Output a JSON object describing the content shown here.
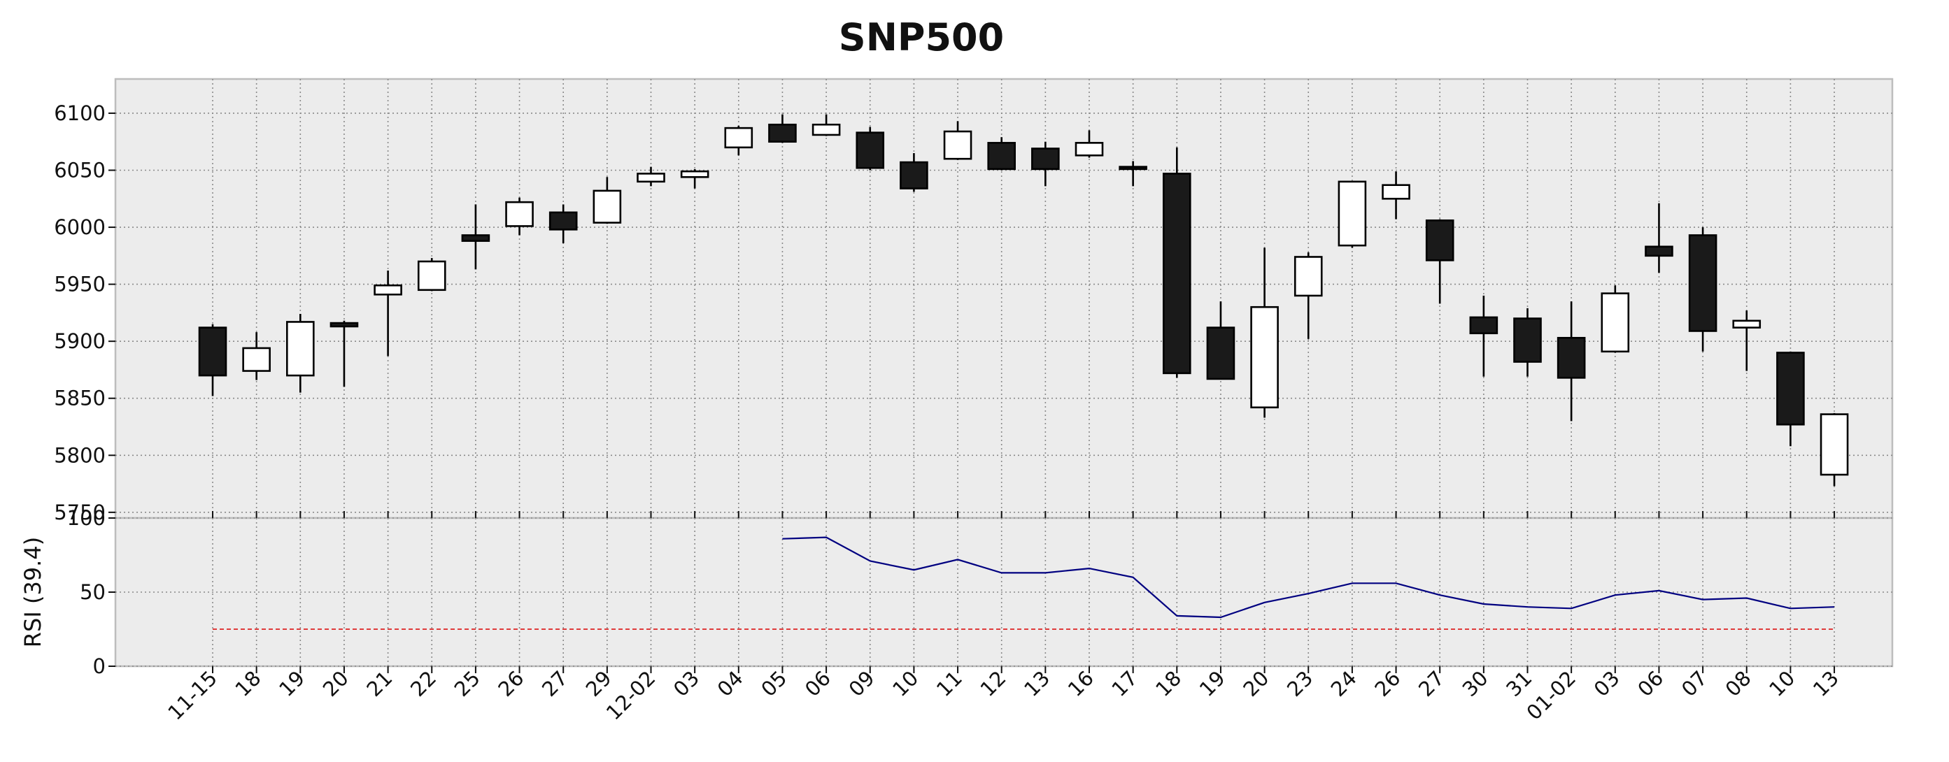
{
  "chart_data": [
    {
      "type": "candlestick",
      "title": "SNP500",
      "ylabel": "",
      "ylim": [
        5745,
        6130
      ],
      "yticks": [
        5750,
        5800,
        5850,
        5900,
        5950,
        6000,
        6050,
        6100
      ],
      "grid": true,
      "up_color": "#ffffff",
      "down_color": "#1a1a1a",
      "categories": [
        "11-15",
        "18",
        "19",
        "20",
        "21",
        "22",
        "25",
        "26",
        "27",
        "29",
        "12-02",
        "03",
        "04",
        "05",
        "06",
        "09",
        "10",
        "11",
        "12",
        "13",
        "16",
        "17",
        "18",
        "19",
        "20",
        "23",
        "24",
        "26",
        "27",
        "30",
        "31",
        "01-02",
        "03",
        "06",
        "07",
        "08",
        "10",
        "13"
      ],
      "ohlc": [
        {
          "open": 5912,
          "high": 5915,
          "low": 5852,
          "close": 5870
        },
        {
          "open": 5874,
          "high": 5908,
          "low": 5866,
          "close": 5894
        },
        {
          "open": 5870,
          "high": 5924,
          "low": 5855,
          "close": 5917
        },
        {
          "open": 5916,
          "high": 5918,
          "low": 5860,
          "close": 5913
        },
        {
          "open": 5941,
          "high": 5962,
          "low": 5887,
          "close": 5949
        },
        {
          "open": 5945,
          "high": 5973,
          "low": 5944,
          "close": 5970
        },
        {
          "open": 5993,
          "high": 6020,
          "low": 5963,
          "close": 5988
        },
        {
          "open": 6001,
          "high": 6026,
          "low": 5993,
          "close": 6022
        },
        {
          "open": 6013,
          "high": 6020,
          "low": 5986,
          "close": 5998
        },
        {
          "open": 6004,
          "high": 6044,
          "low": 6003,
          "close": 6032
        },
        {
          "open": 6040,
          "high": 6053,
          "low": 6036,
          "close": 6047
        },
        {
          "open": 6044,
          "high": 6051,
          "low": 6034,
          "close": 6049
        },
        {
          "open": 6070,
          "high": 6089,
          "low": 6063,
          "close": 6087
        },
        {
          "open": 6090,
          "high": 6099,
          "low": 6074,
          "close": 6075
        },
        {
          "open": 6081,
          "high": 6099,
          "low": 6080,
          "close": 6090
        },
        {
          "open": 6083,
          "high": 6088,
          "low": 6050,
          "close": 6052
        },
        {
          "open": 6057,
          "high": 6065,
          "low": 6031,
          "close": 6034
        },
        {
          "open": 6060,
          "high": 6093,
          "low": 6059,
          "close": 6084
        },
        {
          "open": 6074,
          "high": 6079,
          "low": 6050,
          "close": 6051
        },
        {
          "open": 6069,
          "high": 6075,
          "low": 6036,
          "close": 6051
        },
        {
          "open": 6063,
          "high": 6085,
          "low": 6061,
          "close": 6074
        },
        {
          "open": 6053,
          "high": 6058,
          "low": 6036,
          "close": 6051
        },
        {
          "open": 6047,
          "high": 6070,
          "low": 5868,
          "close": 5872
        },
        {
          "open": 5912,
          "high": 5935,
          "low": 5867,
          "close": 5867
        },
        {
          "open": 5842,
          "high": 5982,
          "low": 5833,
          "close": 5930
        },
        {
          "open": 5940,
          "high": 5978,
          "low": 5902,
          "close": 5974
        },
        {
          "open": 5984,
          "high": 6040,
          "low": 5982,
          "close": 6040
        },
        {
          "open": 6025,
          "high": 6049,
          "low": 6007,
          "close": 6037
        },
        {
          "open": 6006,
          "high": 6007,
          "low": 5933,
          "close": 5971
        },
        {
          "open": 5921,
          "high": 5940,
          "low": 5869,
          "close": 5907
        },
        {
          "open": 5920,
          "high": 5929,
          "low": 5869,
          "close": 5882
        },
        {
          "open": 5903,
          "high": 5935,
          "low": 5830,
          "close": 5868
        },
        {
          "open": 5891,
          "high": 5949,
          "low": 5890,
          "close": 5942
        },
        {
          "open": 5983,
          "high": 6021,
          "low": 5960,
          "close": 5975
        },
        {
          "open": 5993,
          "high": 6000,
          "low": 5891,
          "close": 5909
        },
        {
          "open": 5912,
          "high": 5927,
          "low": 5874,
          "close": 5918
        },
        {
          "open": 5890,
          "high": 5891,
          "low": 5808,
          "close": 5827
        },
        {
          "open": 5783,
          "high": 5837,
          "low": 5773,
          "close": 5836
        }
      ]
    },
    {
      "type": "line",
      "ylabel": "RSI (39.4)",
      "ylim": [
        0,
        100
      ],
      "yticks": [
        0,
        50,
        100
      ],
      "grid": true,
      "series": [
        {
          "color": "#000080",
          "values": [
            null,
            null,
            null,
            null,
            null,
            null,
            null,
            null,
            null,
            null,
            null,
            null,
            null,
            86,
            87,
            71,
            65,
            72,
            63,
            63,
            66,
            60,
            34,
            33,
            43,
            49,
            56,
            56,
            48,
            42,
            40,
            39,
            48,
            51,
            45,
            46,
            39,
            40
          ]
        },
        {
          "color": "#dd2222",
          "style": "dashed",
          "constant": 25
        }
      ]
    }
  ]
}
